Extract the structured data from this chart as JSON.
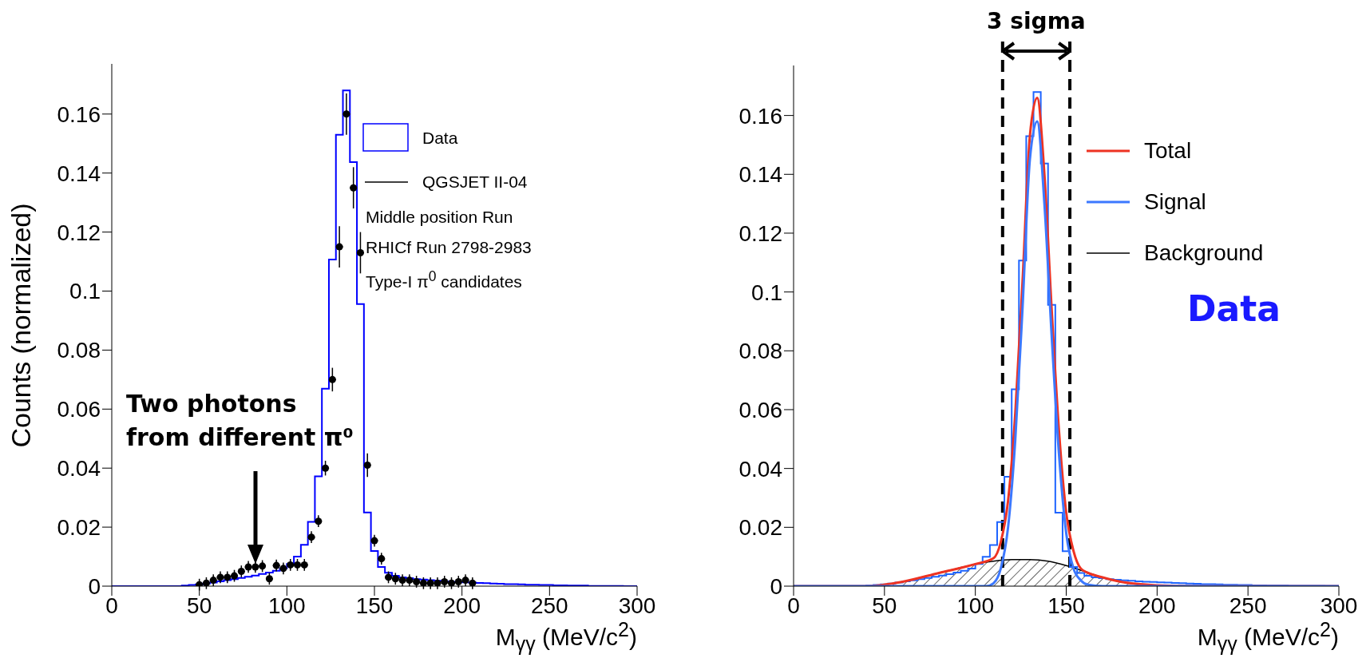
{
  "chart_data": [
    {
      "type": "histogram",
      "ylabel": "Counts (normalized)",
      "xlabel": "M$_{γγ}$ (MeV/c$^{2}$)",
      "xlim": [
        0,
        300
      ],
      "xticks": [
        0,
        50,
        100,
        150,
        200,
        250,
        300
      ],
      "ylim": [
        0,
        0.177
      ],
      "yticks": [
        0,
        0.02,
        0.04,
        0.06,
        0.08,
        0.1,
        0.12,
        0.14,
        0.16
      ],
      "legend": "top right",
      "annotations": [
        "Two photons from different π⁰",
        "Middle position Run",
        "RHICf Run 2798-2983",
        "Type-I π$^{0}$ candidates"
      ],
      "series": [
        {
          "name": "Data",
          "type": "histogram",
          "color": "#0000ff",
          "bins": [
            0,
            4,
            8,
            12,
            16,
            20,
            24,
            28,
            32,
            36,
            40,
            44,
            48,
            52,
            56,
            60,
            64,
            68,
            72,
            76,
            80,
            84,
            88,
            92,
            96,
            100,
            104,
            108,
            112,
            116,
            120,
            124,
            128,
            132,
            136,
            140,
            144,
            148,
            152,
            156,
            160,
            164,
            168,
            172,
            176,
            180,
            184,
            188,
            192,
            196,
            200,
            204,
            208,
            212,
            216,
            220,
            224,
            228,
            232,
            236,
            240,
            244,
            248,
            252,
            256,
            260,
            264,
            268,
            272,
            276,
            280,
            284,
            288,
            292,
            296,
            300
          ],
          "values": [
            0,
            0,
            0,
            0,
            0,
            0,
            0,
            0,
            0,
            0,
            0.0002,
            0.0004,
            0.0006,
            0.0009,
            0.0012,
            0.0016,
            0.002,
            0.0024,
            0.0028,
            0.0032,
            0.0036,
            0.0041,
            0.0046,
            0.0052,
            0.006,
            0.0075,
            0.01,
            0.014,
            0.0218,
            0.0372,
            0.0669,
            0.1107,
            0.153,
            0.168,
            0.1437,
            0.0956,
            0.025,
            0.0119,
            0.0065,
            0.0045,
            0.0035,
            0.003,
            0.0027,
            0.0024,
            0.0022,
            0.002,
            0.0018,
            0.0016,
            0.0015,
            0.0014,
            0.0013,
            0.0012,
            0.0011,
            0.001,
            0.0009,
            0.0008,
            0.0007,
            0.0007,
            0.0006,
            0.0005,
            0.0005,
            0.0004,
            0.0004,
            0.0003,
            0.0003,
            0.0002,
            0.0002,
            0.0002,
            0.0001,
            0.0001,
            0.0001,
            0.0001,
            0.0001,
            0,
            0
          ]
        },
        {
          "name": "QGSJET II-04",
          "type": "scatter",
          "color": "#000000",
          "x": [
            50,
            54,
            58,
            62,
            66,
            70,
            74,
            78,
            82,
            86,
            90,
            94,
            98,
            102,
            106,
            110,
            114,
            118,
            122,
            126,
            130,
            134,
            138,
            142,
            146,
            150,
            154,
            158,
            162,
            166,
            170,
            174,
            178,
            182,
            186,
            190,
            194,
            198,
            202,
            206
          ],
          "values": [
            0.0005,
            0.001,
            0.002,
            0.003,
            0.003,
            0.0035,
            0.005,
            0.0065,
            0.0065,
            0.0068,
            0.0025,
            0.007,
            0.006,
            0.0072,
            0.0072,
            0.0072,
            0.0166,
            0.022,
            0.04,
            0.07,
            0.115,
            0.16,
            0.135,
            0.113,
            0.041,
            0.0154,
            0.0093,
            0.003,
            0.0025,
            0.002,
            0.002,
            0.0015,
            0.001,
            0.001,
            0.001,
            0.0015,
            0.001,
            0.0015,
            0.002,
            0.001
          ],
          "errors": [
            0.002,
            0.002,
            0.002,
            0.002,
            0.002,
            0.002,
            0.002,
            0.002,
            0.002,
            0.002,
            0.002,
            0.002,
            0.002,
            0.002,
            0.002,
            0.002,
            0.002,
            0.002,
            0.0025,
            0.004,
            0.007,
            0.007,
            0.007,
            0.007,
            0.004,
            0.002,
            0.002,
            0.002,
            0.002,
            0.002,
            0.002,
            0.002,
            0.002,
            0.002,
            0.002,
            0.002,
            0.002,
            0.002,
            0.002,
            0.002
          ],
          "xerrors": [
            2,
            2,
            2,
            2,
            2,
            2,
            2,
            2,
            2,
            2,
            2,
            2,
            2,
            2,
            2,
            2,
            2,
            2,
            2,
            2,
            2,
            2,
            2,
            2,
            2,
            2,
            2,
            2,
            2,
            2,
            2,
            2,
            2,
            2,
            2,
            2,
            2,
            2,
            2,
            2
          ]
        }
      ]
    },
    {
      "type": "histogram",
      "xlabel": "M$_{γγ}$ (MeV/c$^{2}$)",
      "xlim": [
        0,
        300
      ],
      "xticks": [
        0,
        50,
        100,
        150,
        200,
        250,
        300
      ],
      "ylim": [
        0,
        0.177
      ],
      "yticks": [
        0,
        0.02,
        0.04,
        0.06,
        0.08,
        0.1,
        0.12,
        0.14,
        0.16
      ],
      "legend": "top right",
      "annotations": [
        "3 sigma",
        "Data"
      ],
      "ref_lines": [
        {
          "axis": "x",
          "value": 115,
          "color": "#000000",
          "line_style": "dashed"
        },
        {
          "axis": "x",
          "value": 152,
          "color": "#000000",
          "line_style": "dashed"
        }
      ],
      "series": [
        {
          "type": "histogram",
          "color": "#1e64ff",
          "bins": [
            0,
            4,
            8,
            12,
            16,
            20,
            24,
            28,
            32,
            36,
            40,
            44,
            48,
            52,
            56,
            60,
            64,
            68,
            72,
            76,
            80,
            84,
            88,
            92,
            96,
            100,
            104,
            108,
            112,
            116,
            120,
            124,
            128,
            132,
            136,
            140,
            144,
            148,
            152,
            156,
            160,
            164,
            168,
            172,
            176,
            180,
            184,
            188,
            192,
            196,
            200,
            204,
            208,
            212,
            216,
            220,
            224,
            228,
            232,
            236,
            240,
            244,
            248,
            252,
            256,
            260,
            264,
            268,
            272,
            276,
            280,
            284,
            288,
            292,
            296,
            300
          ],
          "values": [
            0,
            0,
            0,
            0,
            0,
            0,
            0,
            0,
            0,
            0,
            0.0002,
            0.0004,
            0.0006,
            0.0009,
            0.0012,
            0.0016,
            0.002,
            0.0024,
            0.0028,
            0.0032,
            0.0036,
            0.0041,
            0.0046,
            0.0052,
            0.006,
            0.0075,
            0.01,
            0.014,
            0.0218,
            0.0372,
            0.0669,
            0.1107,
            0.153,
            0.168,
            0.1437,
            0.0956,
            0.025,
            0.0119,
            0.0065,
            0.0045,
            0.0035,
            0.003,
            0.0027,
            0.0024,
            0.0022,
            0.002,
            0.0018,
            0.0016,
            0.0015,
            0.0014,
            0.0013,
            0.0012,
            0.0011,
            0.001,
            0.0009,
            0.0008,
            0.0007,
            0.0007,
            0.0006,
            0.0005,
            0.0005,
            0.0004,
            0.0004,
            0.0003,
            0.0003,
            0.0002,
            0.0002,
            0.0002,
            0.0001,
            0.0001,
            0.0001,
            0.0001,
            0.0001,
            0,
            0
          ]
        },
        {
          "name": "Total",
          "type": "line",
          "color": "#ee3322",
          "x": [
            0,
            40,
            60,
            80,
            100,
            110,
            114,
            118,
            122,
            126,
            130,
            134,
            138,
            142,
            146,
            150,
            154,
            158,
            162,
            170,
            180,
            200,
            220,
            300
          ],
          "values": [
            0,
            0,
            0.0015,
            0.0045,
            0.0075,
            0.0095,
            0.015,
            0.029,
            0.059,
            0.104,
            0.153,
            0.166,
            0.14,
            0.094,
            0.053,
            0.025,
            0.012,
            0.006,
            0.0045,
            0.003,
            0.0015,
            0.0003,
            0,
            0
          ]
        },
        {
          "name": "Signal",
          "type": "line",
          "color": "#3c78ff",
          "x": [
            0,
            106,
            110,
            114,
            118,
            122,
            126,
            130,
            134,
            138,
            142,
            146,
            150,
            154,
            158,
            162,
            170,
            300
          ],
          "values": [
            0,
            0,
            0.001,
            0.006,
            0.02,
            0.05,
            0.095,
            0.145,
            0.158,
            0.13,
            0.085,
            0.045,
            0.018,
            0.006,
            0.002,
            0.0005,
            0,
            0
          ]
        },
        {
          "name": "Background",
          "type": "area",
          "color": "#000000",
          "x": [
            40,
            50,
            60,
            70,
            80,
            90,
            100,
            110,
            120,
            130,
            140,
            150,
            160,
            170,
            180,
            190,
            200
          ],
          "values": [
            0,
            0.0005,
            0.0015,
            0.003,
            0.0045,
            0.006,
            0.0075,
            0.0085,
            0.009,
            0.009,
            0.0085,
            0.007,
            0.005,
            0.003,
            0.0015,
            0.0005,
            0
          ]
        }
      ]
    }
  ]
}
